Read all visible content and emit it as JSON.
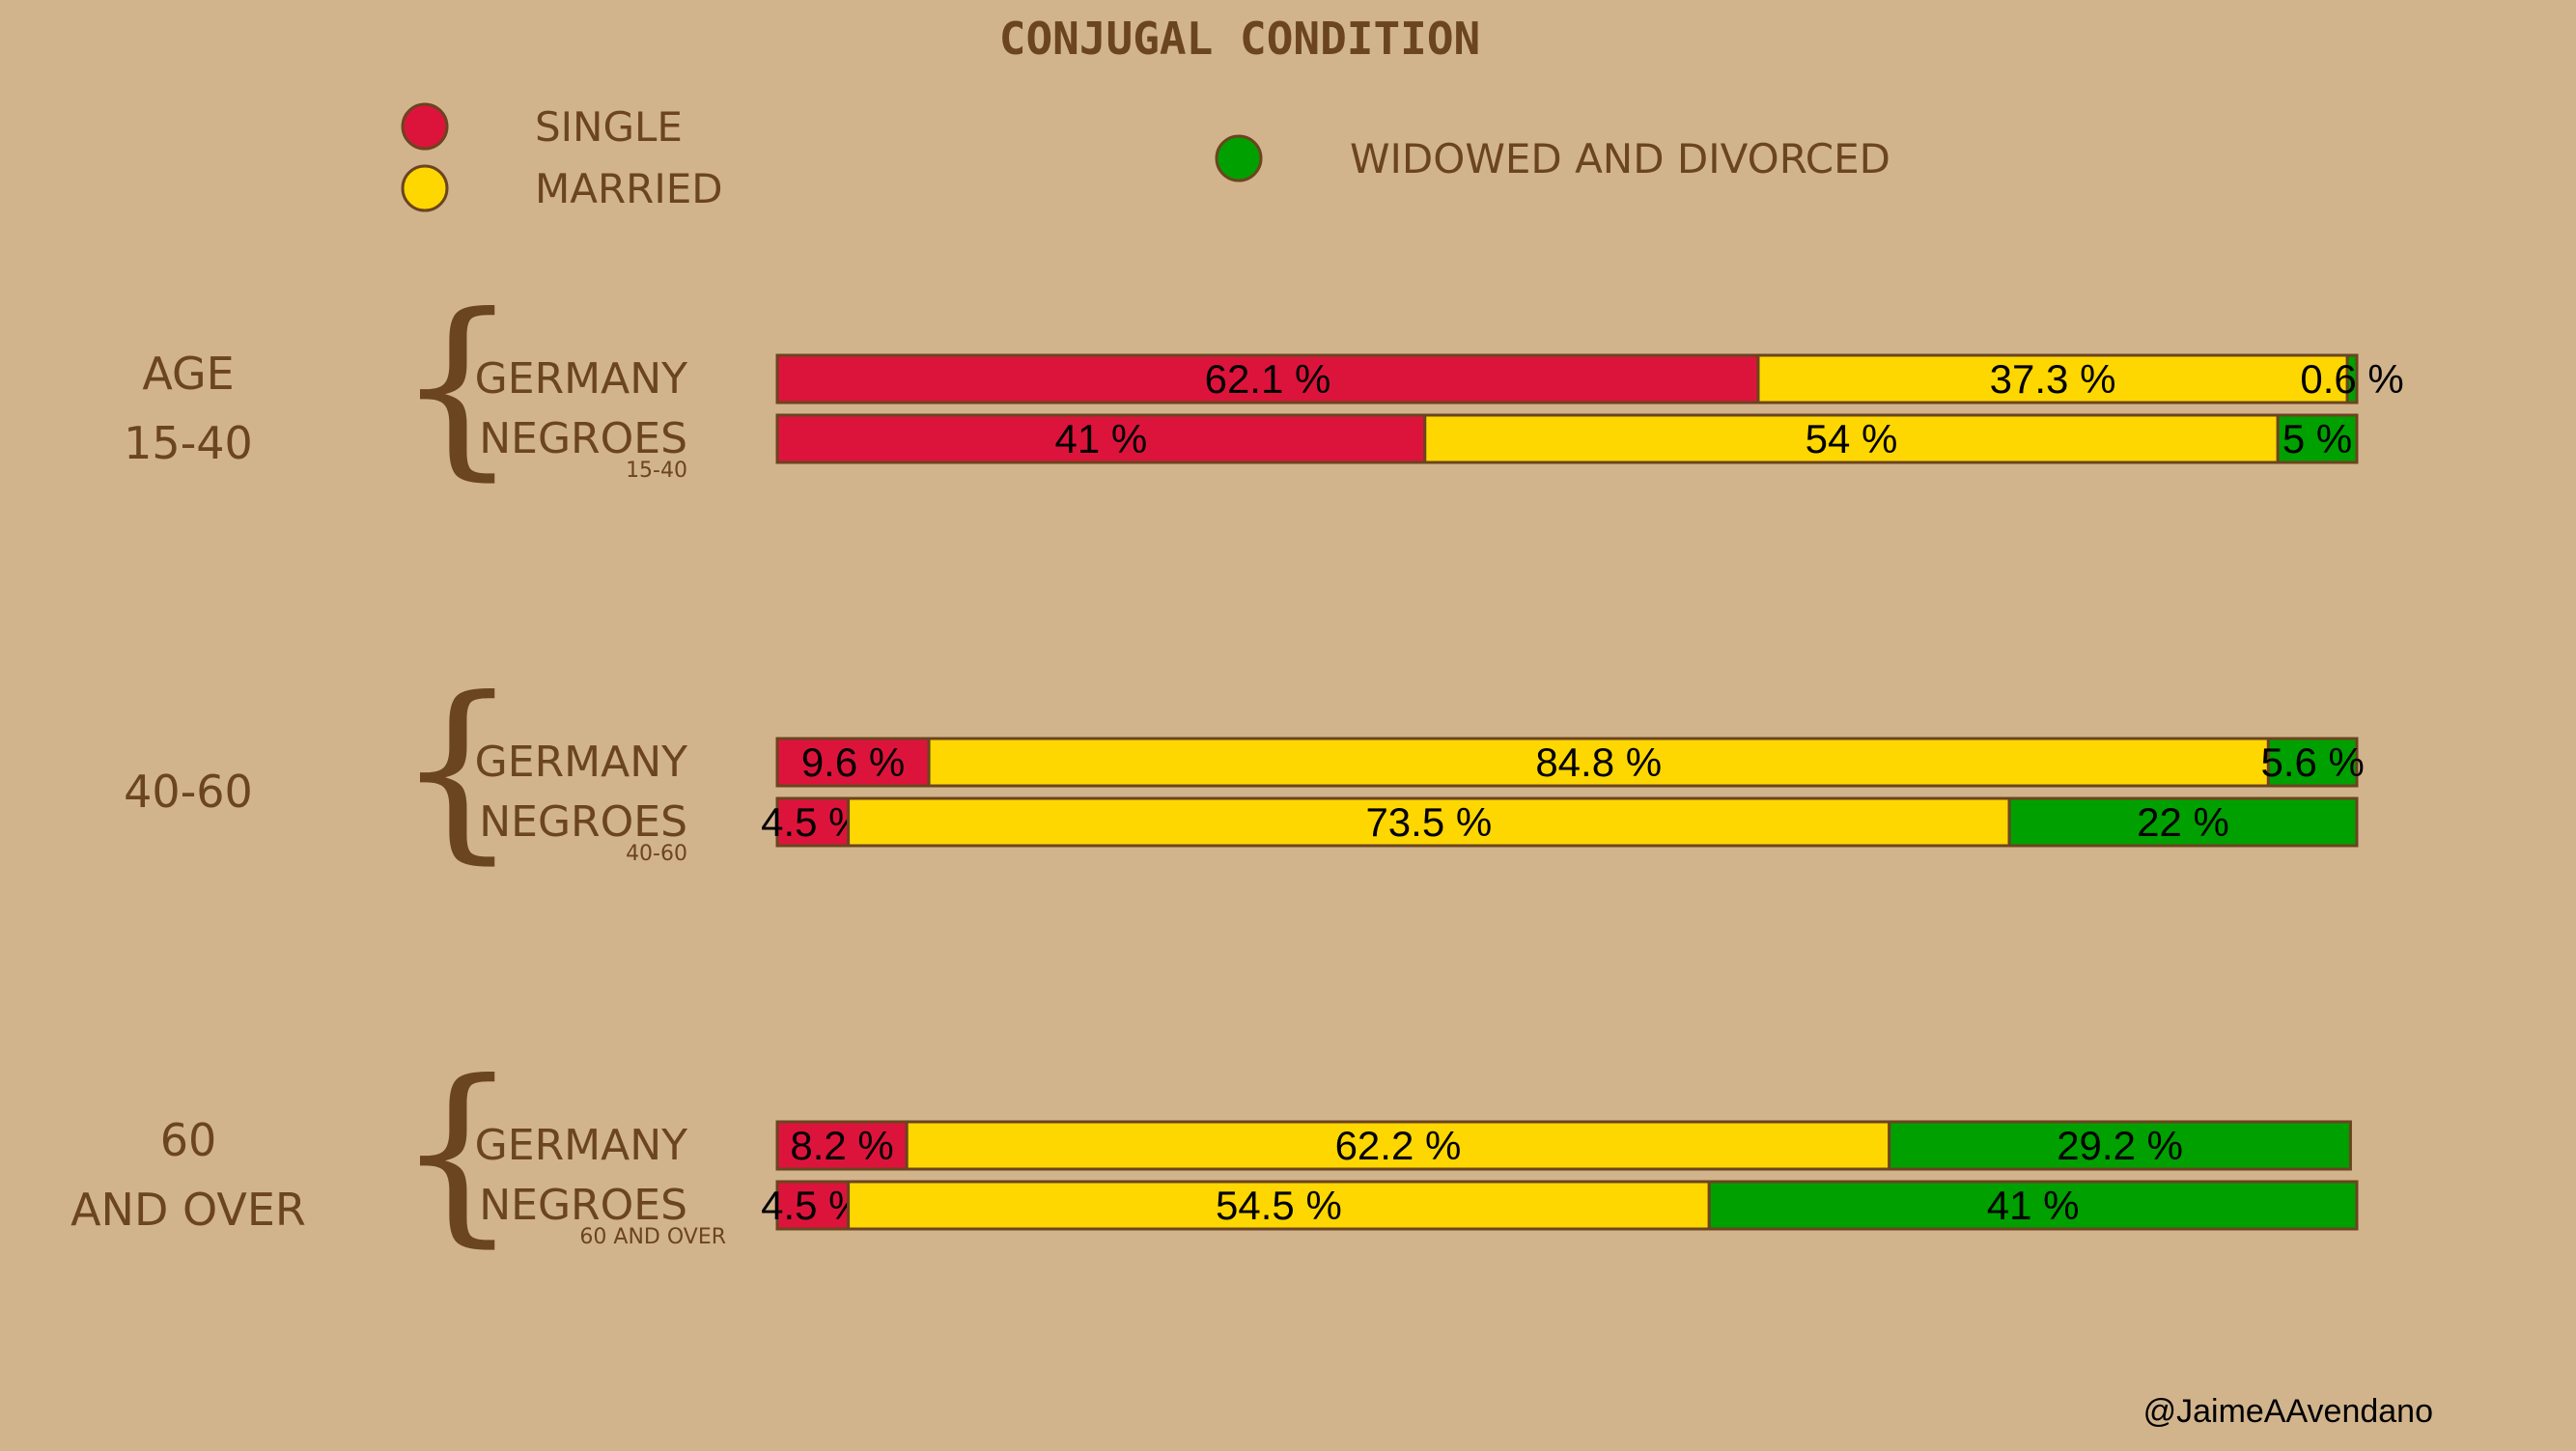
{
  "chart_data": {
    "type": "bar",
    "orientation": "horizontal",
    "stacked": true,
    "normalized_percent": true,
    "title": "CONJUGAL CONDITION",
    "legend": [
      {
        "label": "SINGLE",
        "color": "#dc143c"
      },
      {
        "label": "MARRIED",
        "color": "#ffd700"
      },
      {
        "label": "WIDOWED AND DIVORCED",
        "color": "#00a000"
      }
    ],
    "groups": [
      {
        "labels": [
          "AGE",
          "15-40"
        ],
        "sublabel": "15-40",
        "rows": [
          {
            "name": "GERMANY",
            "values": [
              62.1,
              37.3,
              0.6
            ],
            "labels": [
              "62.1 %",
              "37.3 %",
              "0.6 %"
            ]
          },
          {
            "name": "NEGROES",
            "values": [
              41,
              54,
              5
            ],
            "labels": [
              "41 %",
              "54 %",
              "5 %"
            ]
          }
        ]
      },
      {
        "labels": [
          "40-60"
        ],
        "sublabel": "40-60",
        "rows": [
          {
            "name": "GERMANY",
            "values": [
              9.6,
              84.8,
              5.6
            ],
            "labels": [
              "9.6 %",
              "84.8 %",
              "5.6 %"
            ]
          },
          {
            "name": "NEGROES",
            "values": [
              4.5,
              73.5,
              22
            ],
            "labels": [
              "4.5 %",
              "73.5 %",
              "22 %"
            ]
          }
        ]
      },
      {
        "labels": [
          "60",
          "AND OVER"
        ],
        "sublabel": "60 AND OVER",
        "rows": [
          {
            "name": "GERMANY",
            "values": [
              8.2,
              62.2,
              29.2
            ],
            "labels": [
              "8.2 %",
              "62.2 %",
              "29.2 %"
            ]
          },
          {
            "name": "NEGROES",
            "values": [
              4.5,
              54.5,
              41
            ],
            "labels": [
              "4.5 %",
              "54.5 %",
              "41 %"
            ]
          }
        ]
      }
    ]
  },
  "credit": "@JaimeAAvendano",
  "colors": {
    "background": "#d2b48c",
    "text": "#6b4420",
    "bar_outline": "#6b4420"
  }
}
